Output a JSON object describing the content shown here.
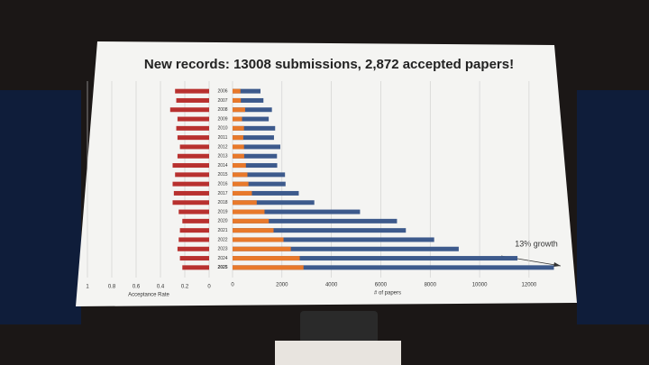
{
  "chart_data": {
    "type": "bar",
    "orientation": "horizontal",
    "title": "New records: 13008 submissions, 2,872 accepted papers!",
    "categories": [
      "2006",
      "2007",
      "2008",
      "2009",
      "2010",
      "2011",
      "2012",
      "2013",
      "2014",
      "2015",
      "2016",
      "2017",
      "2018",
      "2019",
      "2020",
      "2021",
      "2022",
      "2023",
      "2024",
      "2025"
    ],
    "series": [
      {
        "color": "#b8312f",
        "axis": "x2",
        "values": [
          0.28,
          0.27,
          0.32,
          0.26,
          0.27,
          0.26,
          0.24,
          0.26,
          0.3,
          0.28,
          0.3,
          0.29,
          0.3,
          0.25,
          0.22,
          0.24,
          0.25,
          0.26,
          0.24,
          0.22
        ]
      },
      {
        "color": "#3d5a8c",
        "values": [
          1130,
          1250,
          1593,
          1464,
          1724,
          1677,
          1933,
          1798,
          1807,
          2123,
          2145,
          2680,
          3309,
          5160,
          6656,
          7015,
          8161,
          9155,
          11532,
          13008
        ]
      },
      {
        "color": "#e8792b",
        "values": [
          318,
          334,
          508,
          384,
          462,
          436,
          463,
          471,
          540,
          602,
          643,
          783,
          979,
          1294,
          1467,
          1660,
          2063,
          2359,
          2719,
          2872
        ]
      }
    ],
    "xlim": [
      0,
      13500
    ],
    "xticks": [
      0,
      2000,
      4000,
      6000,
      8000,
      10000,
      12000
    ],
    "xlabel": "# of papers",
    "x2lim": [
      1,
      0
    ],
    "x2ticks": [
      1,
      0.8,
      0.6,
      0.4,
      0.2,
      0
    ],
    "x2label": "Acceptance Rate",
    "annotation": "13% growth",
    "grid": true
  }
}
